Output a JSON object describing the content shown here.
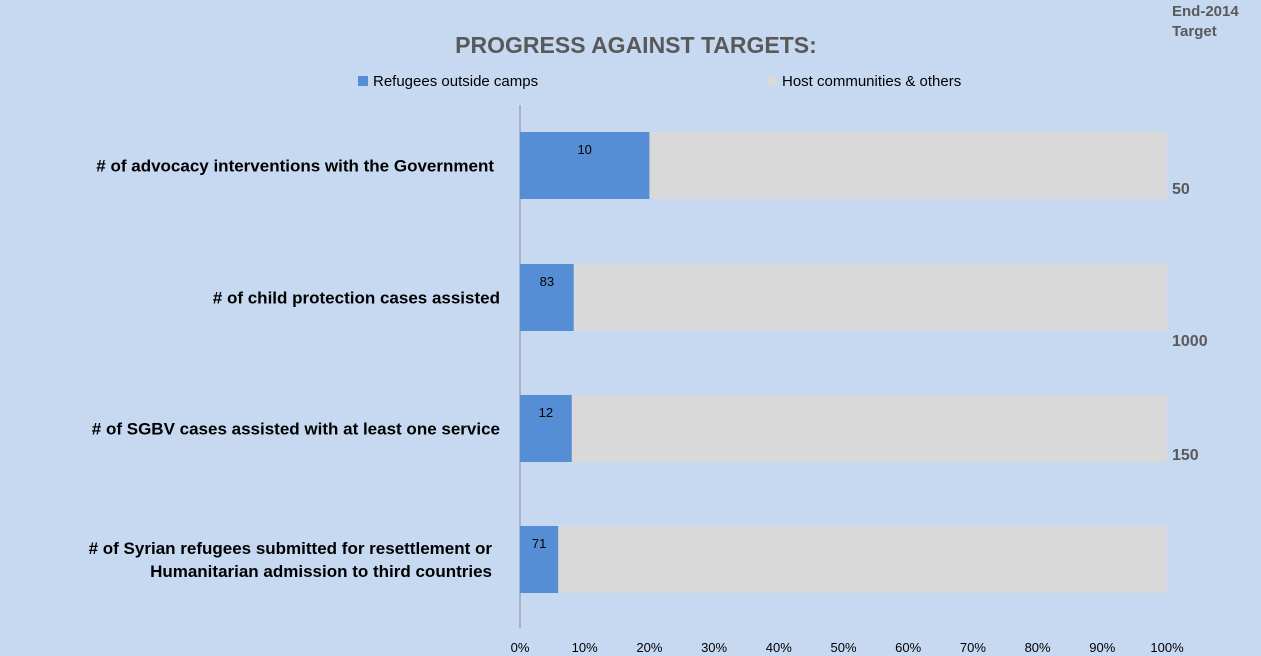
{
  "chart_data": {
    "type": "bar",
    "orientation": "horizontal",
    "stacked": true,
    "percent_stacked": true,
    "title": "PROGRESS AGAINST TARGETS:",
    "target_header": [
      "End-2014",
      "Target"
    ],
    "legend_position": "top",
    "series": [
      {
        "name": "Refugees outside camps",
        "color": "#558ed5"
      },
      {
        "name": "Host communities & others",
        "color": "#d9d9d9"
      }
    ],
    "categories": [
      [
        "# of advocacy interventions with the Government"
      ],
      [
        "# of child protection cases assisted"
      ],
      [
        "# of SGBV cases assisted with at least one service"
      ],
      [
        "# of Syrian refugees submitted  for resettlement or",
        "Humanitarian admission to third countries"
      ]
    ],
    "data_labels": [
      "10",
      "83",
      "12",
      "71"
    ],
    "progress_percent": [
      20,
      8.3,
      8,
      5.9
    ],
    "targets": [
      "50",
      "1000",
      "150",
      ""
    ],
    "xlim": [
      0,
      100
    ],
    "x_ticks": [
      "0%",
      "10%",
      "20%",
      "30%",
      "40%",
      "50%",
      "60%",
      "70%",
      "80%",
      "90%",
      "100%"
    ],
    "grid": false
  }
}
